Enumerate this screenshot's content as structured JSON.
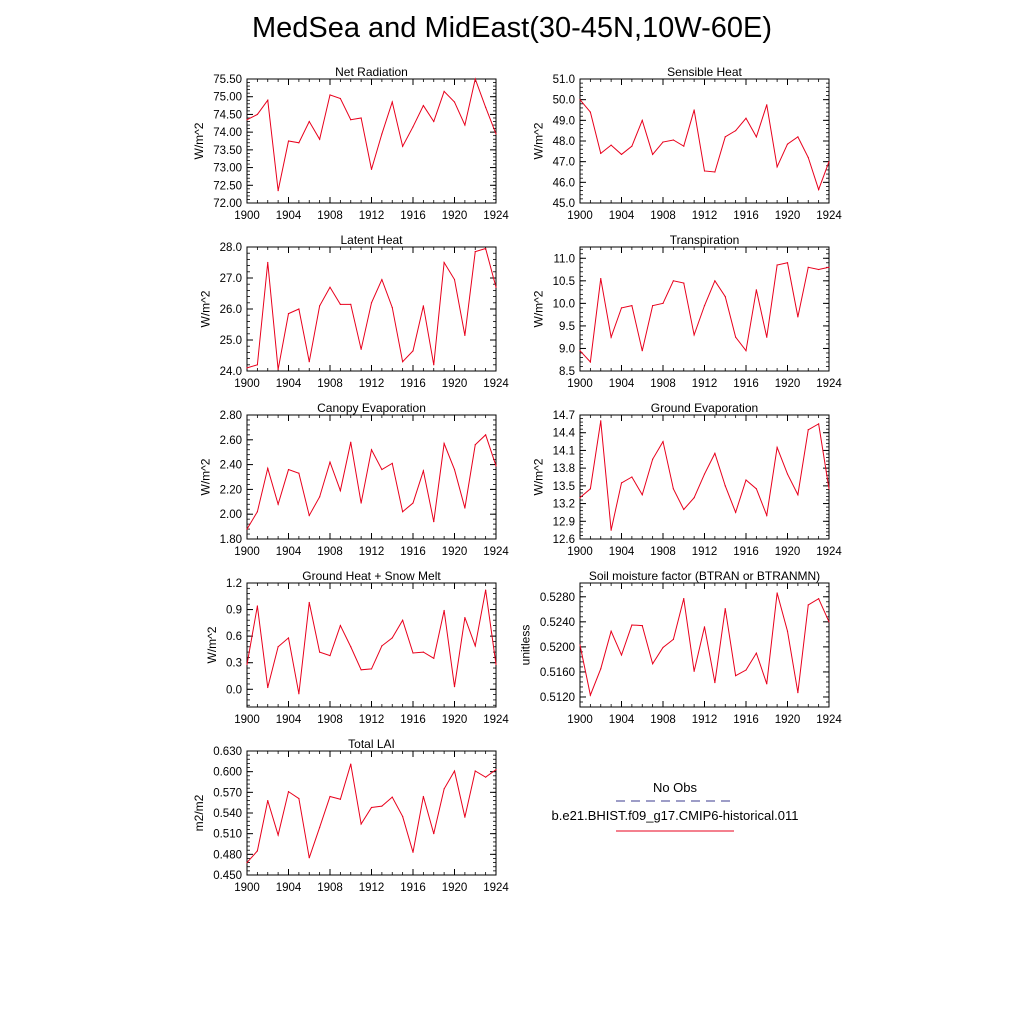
{
  "figure": {
    "title": "MedSea and MidEast(30-45N,10W-60E)"
  },
  "legend": {
    "obs_label": "No Obs",
    "obs_color": "#3b3b8f",
    "model_label": "b.e21.BHIST.f09_g17.CMIP6-historical.011",
    "model_color": "#e8001c"
  },
  "chart_data": [
    {
      "type": "line",
      "title": "Net Radiation",
      "ylabel": "W/m^2",
      "x": [
        1900,
        1901,
        1902,
        1903,
        1904,
        1905,
        1906,
        1907,
        1908,
        1909,
        1910,
        1911,
        1912,
        1913,
        1914,
        1915,
        1916,
        1917,
        1918,
        1919,
        1920,
        1921,
        1922,
        1923,
        1924
      ],
      "xlim": [
        1900,
        1924
      ],
      "xticks": [
        "1900",
        "1904",
        "1908",
        "1912",
        "1916",
        "1920",
        "1924"
      ],
      "ylim": [
        72.0,
        75.5
      ],
      "yticks": [
        "72.00",
        "72.50",
        "73.00",
        "73.50",
        "74.00",
        "74.50",
        "75.00",
        "75.50"
      ],
      "series": [
        {
          "color": "#e8001c",
          "values": [
            74.35,
            74.5,
            74.9,
            72.35,
            73.75,
            73.7,
            74.3,
            73.8,
            75.05,
            74.95,
            74.35,
            74.4,
            72.95,
            73.95,
            74.85,
            73.6,
            74.15,
            74.75,
            74.3,
            75.15,
            74.85,
            74.2,
            75.5,
            74.7,
            73.95
          ]
        }
      ]
    },
    {
      "type": "line",
      "title": "Sensible Heat",
      "ylabel": "W/m^2",
      "x": [
        1900,
        1901,
        1902,
        1903,
        1904,
        1905,
        1906,
        1907,
        1908,
        1909,
        1910,
        1911,
        1912,
        1913,
        1914,
        1915,
        1916,
        1917,
        1918,
        1919,
        1920,
        1921,
        1922,
        1923,
        1924
      ],
      "xlim": [
        1900,
        1924
      ],
      "xticks": [
        "1900",
        "1904",
        "1908",
        "1912",
        "1916",
        "1920",
        "1924"
      ],
      "ylim": [
        45.0,
        51.0
      ],
      "yticks": [
        "45.0",
        "46.0",
        "47.0",
        "48.0",
        "49.0",
        "50.0",
        "51.0"
      ],
      "series": [
        {
          "color": "#e8001c",
          "values": [
            50.0,
            49.4,
            47.4,
            47.8,
            47.35,
            47.75,
            49.0,
            47.35,
            47.95,
            48.05,
            47.75,
            49.5,
            46.55,
            46.5,
            48.2,
            48.5,
            49.1,
            48.2,
            49.75,
            46.75,
            47.85,
            48.2,
            47.2,
            45.65,
            47.0
          ]
        }
      ]
    },
    {
      "type": "line",
      "title": "Latent Heat",
      "ylabel": "W/m^2",
      "x": [
        1900,
        1901,
        1902,
        1903,
        1904,
        1905,
        1906,
        1907,
        1908,
        1909,
        1910,
        1911,
        1912,
        1913,
        1914,
        1915,
        1916,
        1917,
        1918,
        1919,
        1920,
        1921,
        1922,
        1923,
        1924
      ],
      "xlim": [
        1900,
        1924
      ],
      "xticks": [
        "1900",
        "1904",
        "1908",
        "1912",
        "1916",
        "1920",
        "1924"
      ],
      "ylim": [
        24.0,
        28.0
      ],
      "yticks": [
        "24.0",
        "25.0",
        "26.0",
        "27.0",
        "28.0"
      ],
      "series": [
        {
          "color": "#e8001c",
          "values": [
            24.1,
            24.2,
            27.5,
            24.05,
            25.85,
            26.0,
            24.3,
            26.1,
            26.7,
            26.15,
            26.15,
            24.7,
            26.2,
            26.95,
            26.05,
            24.3,
            24.65,
            26.1,
            24.2,
            27.5,
            26.95,
            25.15,
            27.85,
            27.95,
            26.7
          ]
        }
      ]
    },
    {
      "type": "line",
      "title": "Transpiration",
      "ylabel": "W/m^2",
      "x": [
        1900,
        1901,
        1902,
        1903,
        1904,
        1905,
        1906,
        1907,
        1908,
        1909,
        1910,
        1911,
        1912,
        1913,
        1914,
        1915,
        1916,
        1917,
        1918,
        1919,
        1920,
        1921,
        1922,
        1923,
        1924
      ],
      "xlim": [
        1900,
        1924
      ],
      "xticks": [
        "1900",
        "1904",
        "1908",
        "1912",
        "1916",
        "1920",
        "1924"
      ],
      "ylim": [
        8.5,
        11.25
      ],
      "yticks": [
        "8.5",
        "9.0",
        "9.5",
        "10.0",
        "10.5",
        "11.0"
      ],
      "series": [
        {
          "color": "#e8001c",
          "values": [
            8.95,
            8.7,
            10.55,
            9.25,
            9.9,
            9.95,
            8.95,
            9.95,
            10.0,
            10.5,
            10.45,
            9.3,
            9.95,
            10.5,
            10.15,
            9.25,
            8.95,
            10.3,
            9.25,
            10.85,
            10.9,
            9.7,
            10.8,
            10.75,
            10.8
          ]
        }
      ]
    },
    {
      "type": "line",
      "title": "Canopy Evaporation",
      "ylabel": "W/m^2",
      "x": [
        1900,
        1901,
        1902,
        1903,
        1904,
        1905,
        1906,
        1907,
        1908,
        1909,
        1910,
        1911,
        1912,
        1913,
        1914,
        1915,
        1916,
        1917,
        1918,
        1919,
        1920,
        1921,
        1922,
        1923,
        1924
      ],
      "xlim": [
        1900,
        1924
      ],
      "xticks": [
        "1900",
        "1904",
        "1908",
        "1912",
        "1916",
        "1920",
        "1924"
      ],
      "ylim": [
        1.8,
        2.8
      ],
      "yticks": [
        "1.80",
        "2.00",
        "2.20",
        "2.40",
        "2.60",
        "2.80"
      ],
      "series": [
        {
          "color": "#e8001c",
          "values": [
            1.88,
            2.02,
            2.37,
            2.08,
            2.36,
            2.33,
            1.99,
            2.14,
            2.42,
            2.19,
            2.58,
            2.09,
            2.52,
            2.36,
            2.41,
            2.02,
            2.09,
            2.35,
            1.94,
            2.57,
            2.36,
            2.05,
            2.56,
            2.64,
            2.39
          ]
        }
      ]
    },
    {
      "type": "line",
      "title": "Ground Evaporation",
      "ylabel": "W/m^2",
      "x": [
        1900,
        1901,
        1902,
        1903,
        1904,
        1905,
        1906,
        1907,
        1908,
        1909,
        1910,
        1911,
        1912,
        1913,
        1914,
        1915,
        1916,
        1917,
        1918,
        1919,
        1920,
        1921,
        1922,
        1923,
        1924
      ],
      "xlim": [
        1900,
        1924
      ],
      "xticks": [
        "1900",
        "1904",
        "1908",
        "1912",
        "1916",
        "1920",
        "1924"
      ],
      "ylim": [
        12.6,
        14.7
      ],
      "yticks": [
        "12.6",
        "12.9",
        "13.2",
        "13.5",
        "13.8",
        "14.1",
        "14.4",
        "14.7"
      ],
      "series": [
        {
          "color": "#e8001c",
          "values": [
            13.3,
            13.45,
            14.6,
            12.75,
            13.55,
            13.65,
            13.35,
            13.95,
            14.25,
            13.45,
            13.1,
            13.3,
            13.7,
            14.05,
            13.5,
            13.05,
            13.6,
            13.45,
            13.0,
            14.15,
            13.7,
            13.35,
            14.45,
            14.55,
            13.45
          ]
        }
      ]
    },
    {
      "type": "line",
      "title": "Ground Heat + Snow Melt",
      "ylabel": "W/m^2",
      "x": [
        1900,
        1901,
        1902,
        1903,
        1904,
        1905,
        1906,
        1907,
        1908,
        1909,
        1910,
        1911,
        1912,
        1913,
        1914,
        1915,
        1916,
        1917,
        1918,
        1919,
        1920,
        1921,
        1922,
        1923,
        1924
      ],
      "xlim": [
        1900,
        1924
      ],
      "xticks": [
        "1900",
        "1904",
        "1908",
        "1912",
        "1916",
        "1920",
        "1924"
      ],
      "ylim": [
        -0.2,
        1.2
      ],
      "yticks": [
        "0.0",
        "0.3",
        "0.6",
        "0.9",
        "1.2"
      ],
      "series": [
        {
          "color": "#e8001c",
          "values": [
            0.28,
            0.94,
            0.02,
            0.48,
            0.58,
            -0.05,
            0.98,
            0.42,
            0.38,
            0.72,
            0.48,
            0.22,
            0.23,
            0.49,
            0.58,
            0.78,
            0.41,
            0.42,
            0.35,
            0.89,
            0.03,
            0.81,
            0.49,
            1.12,
            0.28
          ]
        }
      ]
    },
    {
      "type": "line",
      "title": "Soil moisture factor (BTRAN or BTRANMN)",
      "ylabel": "unitless",
      "x": [
        1900,
        1901,
        1902,
        1903,
        1904,
        1905,
        1906,
        1907,
        1908,
        1909,
        1910,
        1911,
        1912,
        1913,
        1914,
        1915,
        1916,
        1917,
        1918,
        1919,
        1920,
        1921,
        1922,
        1923,
        1924
      ],
      "xlim": [
        1900,
        1924
      ],
      "xticks": [
        "1900",
        "1904",
        "1908",
        "1912",
        "1916",
        "1920",
        "1924"
      ],
      "ylim": [
        0.5104,
        0.5302
      ],
      "yticks": [
        "0.5120",
        "0.5160",
        "0.5200",
        "0.5240",
        "0.5280"
      ],
      "series": [
        {
          "color": "#e8001c",
          "values": [
            0.5203,
            0.5123,
            0.5165,
            0.5225,
            0.5187,
            0.5235,
            0.5234,
            0.5173,
            0.5199,
            0.5212,
            0.5277,
            0.5161,
            0.5232,
            0.5143,
            0.5261,
            0.5154,
            0.5163,
            0.519,
            0.5141,
            0.5286,
            0.5225,
            0.5127,
            0.5267,
            0.5277,
            0.524
          ]
        }
      ]
    },
    {
      "type": "line",
      "title": "Total LAI",
      "ylabel": "m2/m2",
      "x": [
        1900,
        1901,
        1902,
        1903,
        1904,
        1905,
        1906,
        1907,
        1908,
        1909,
        1910,
        1911,
        1912,
        1913,
        1914,
        1915,
        1916,
        1917,
        1918,
        1919,
        1920,
        1921,
        1922,
        1923,
        1924
      ],
      "xlim": [
        1900,
        1924
      ],
      "xticks": [
        "1900",
        "1904",
        "1908",
        "1912",
        "1916",
        "1920",
        "1924"
      ],
      "ylim": [
        0.45,
        0.63
      ],
      "yticks": [
        "0.450",
        "0.480",
        "0.510",
        "0.540",
        "0.570",
        "0.600",
        "0.630"
      ],
      "series": [
        {
          "color": "#e8001c",
          "values": [
            0.468,
            0.485,
            0.558,
            0.508,
            0.571,
            0.561,
            0.475,
            0.519,
            0.564,
            0.56,
            0.611,
            0.524,
            0.548,
            0.55,
            0.563,
            0.535,
            0.483,
            0.564,
            0.51,
            0.575,
            0.601,
            0.534,
            0.601,
            0.592,
            0.603
          ]
        }
      ]
    }
  ]
}
